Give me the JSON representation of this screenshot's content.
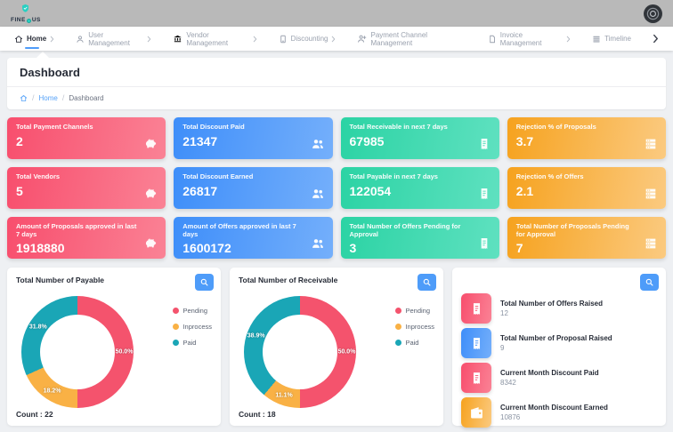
{
  "theme": {
    "accent_blue": "#4e9cf9",
    "card_pink": "#f84e6d",
    "card_blue": "#3e8ef9",
    "card_green": "#2bd3a4",
    "card_orange": "#f6a21e",
    "chart_pending": "#f4536d",
    "chart_inprocess": "#f9b145",
    "chart_paid": "#1aa6b6",
    "topbar_gray": "#b9b9b9",
    "background": "#eef0f3"
  },
  "topbar": {
    "brand_left": "FINE",
    "brand_right": "US"
  },
  "nav": {
    "items": [
      {
        "label": "Home",
        "active": true,
        "has_chevron": true
      },
      {
        "label": "User Management",
        "active": false,
        "has_chevron": true
      },
      {
        "label": "Vendor Management",
        "active": false,
        "has_chevron": true
      },
      {
        "label": "Discounting",
        "active": false,
        "has_chevron": true
      },
      {
        "label": "Payment Channel Management",
        "active": false,
        "has_chevron": false
      },
      {
        "label": "Invoice Management",
        "active": false,
        "has_chevron": true
      },
      {
        "label": "Timeline",
        "active": false,
        "has_chevron": false
      }
    ]
  },
  "page": {
    "title": "Dashboard",
    "breadcrumb": {
      "home_label": "Home",
      "current": "Dashboard",
      "separator": "/"
    }
  },
  "stats": {
    "cards": [
      {
        "label": "Total Payment Channels",
        "value": "2",
        "color": "#f84e6d",
        "icon": "piggy-bank"
      },
      {
        "label": "Total Discount Paid",
        "value": "21347",
        "color": "#3e8ef9",
        "icon": "users"
      },
      {
        "label": "Total Receivable in next 7 days",
        "value": "67985",
        "color": "#2bd3a4",
        "icon": "receipt"
      },
      {
        "label": "Rejection % of Proposals",
        "value": "3.7",
        "color": "#f6a21e",
        "icon": "server-stack"
      },
      {
        "label": "Total Vendors",
        "value": "5",
        "color": "#f84e6d",
        "icon": "piggy-bank"
      },
      {
        "label": "Total Discount Earned",
        "value": "26817",
        "color": "#3e8ef9",
        "icon": "users"
      },
      {
        "label": "Total Payable in next 7 days",
        "value": "122054",
        "color": "#2bd3a4",
        "icon": "receipt"
      },
      {
        "label": "Rejection % of Offers",
        "value": "2.1",
        "color": "#f6a21e",
        "icon": "server-stack"
      },
      {
        "label": "Amount of Proposals approved in last 7 days",
        "value": "1918880",
        "color": "#f84e6d",
        "icon": "piggy-bank"
      },
      {
        "label": "Amount of Offers approved in last 7 days",
        "value": "1600172",
        "color": "#3e8ef9",
        "icon": "users"
      },
      {
        "label": "Total Number of Offers Pending for Approval",
        "value": "3",
        "color": "#2bd3a4",
        "icon": "receipt"
      },
      {
        "label": "Total Number of Proposals Pending for Approval",
        "value": "7",
        "color": "#f6a21e",
        "icon": "server-stack"
      }
    ]
  },
  "chart_data": [
    {
      "type": "pie",
      "subtype": "donut",
      "title": "Total Number of Payable",
      "count": 22,
      "count_label": "Count : 22",
      "legend_position": "right",
      "labels": [
        "Pending",
        "Inprocess",
        "Paid"
      ],
      "values": [
        11,
        4,
        7
      ],
      "slices": [
        {
          "label": "Pending",
          "value": 11,
          "percent": 50.0,
          "color": "#f4536d"
        },
        {
          "label": "Inprocess",
          "value": 4,
          "percent": 18.2,
          "color": "#f9b145"
        },
        {
          "label": "Paid",
          "value": 7,
          "percent": 31.8,
          "color": "#1aa6b6"
        }
      ]
    },
    {
      "type": "pie",
      "subtype": "donut",
      "title": "Total Number of Receivable",
      "count": 18,
      "count_label": "Count : 18",
      "legend_position": "right",
      "labels": [
        "Pending",
        "Inprocess",
        "Paid"
      ],
      "values": [
        9,
        2,
        7
      ],
      "slices": [
        {
          "label": "Pending",
          "value": 9,
          "percent": 50.0,
          "color": "#f4536d"
        },
        {
          "label": "Inprocess",
          "value": 2,
          "percent": 11.1,
          "color": "#f9b145"
        },
        {
          "label": "Paid",
          "value": 7,
          "percent": 38.9,
          "color": "#1aa6b6"
        }
      ]
    }
  ],
  "summary": {
    "items": [
      {
        "label": "Total Number of Offers Raised",
        "value": "12",
        "color": "#f84e6d",
        "icon": "receipt"
      },
      {
        "label": "Total Number of Proposal Raised",
        "value": "9",
        "color": "#3e8ef9",
        "icon": "receipt"
      },
      {
        "label": "Current Month Discount Paid",
        "value": "8342",
        "color": "#f84e6d",
        "icon": "receipt"
      },
      {
        "label": "Current Month Discount Earned",
        "value": "10876",
        "color": "#f6a21e",
        "icon": "wallet"
      }
    ]
  }
}
